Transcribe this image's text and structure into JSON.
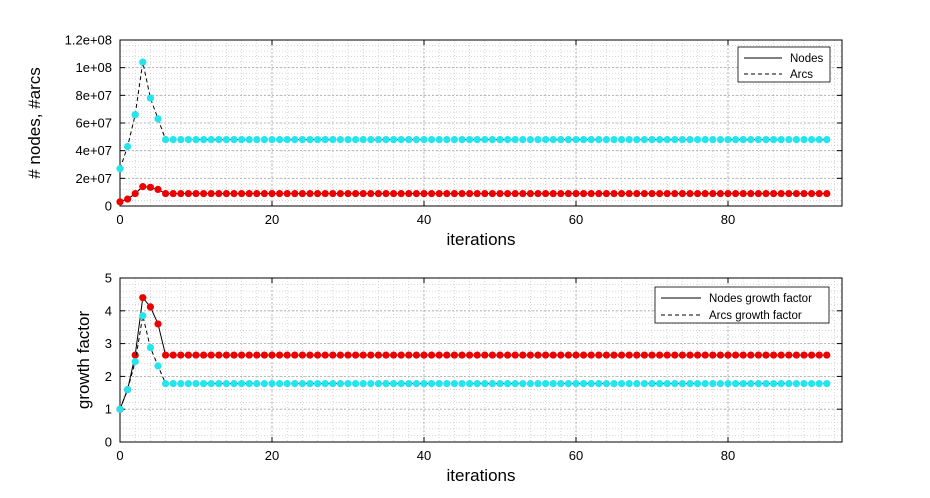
{
  "chart_data": [
    {
      "type": "line",
      "xlabel": "iterations",
      "ylabel": "# nodes, #arcs",
      "xlim": [
        0,
        95
      ],
      "ylim": [
        0,
        120000000
      ],
      "xticks": [
        0,
        20,
        40,
        60,
        80
      ],
      "xtick_labels": [
        "0",
        "20",
        "40",
        "60",
        "80"
      ],
      "yticks": [
        0,
        20000000,
        40000000,
        60000000,
        80000000,
        100000000,
        120000000
      ],
      "ytick_labels": [
        "0",
        "2e+07",
        "4e+07",
        "6e+07",
        "8e+07",
        "1e+08",
        "1.2e+08"
      ],
      "grid": true,
      "minor_grid": true,
      "legend_position": "top-right",
      "series": [
        {
          "name": "Nodes",
          "line_style": "solid",
          "marker_color": "#ee0000",
          "head": [
            3000000,
            5000000,
            9000000,
            14000000,
            13500000,
            12000000
          ],
          "steady_value": 9000000,
          "steady_from": 6,
          "steady_to": 93
        },
        {
          "name": "Arcs",
          "line_style": "dashed",
          "marker_color": "#22e5ee",
          "head": [
            27000000,
            43000000,
            66000000,
            104000000,
            78000000,
            63000000
          ],
          "steady_value": 48000000,
          "steady_from": 6,
          "steady_to": 93
        }
      ]
    },
    {
      "type": "line",
      "xlabel": "iterations",
      "ylabel": "growth factor",
      "xlim": [
        0,
        95
      ],
      "ylim": [
        0,
        5
      ],
      "xticks": [
        0,
        20,
        40,
        60,
        80
      ],
      "xtick_labels": [
        "0",
        "20",
        "40",
        "60",
        "80"
      ],
      "yticks": [
        0,
        1,
        2,
        3,
        4,
        5
      ],
      "ytick_labels": [
        "0",
        "1",
        "2",
        "3",
        "4",
        "5"
      ],
      "grid": true,
      "minor_grid": true,
      "legend_position": "top-right",
      "series": [
        {
          "name": "Nodes growth factor",
          "line_style": "solid",
          "marker_color": "#ee0000",
          "head": [
            1.0,
            1.6,
            2.65,
            4.4,
            4.12,
            3.6
          ],
          "steady_value": 2.65,
          "steady_from": 6,
          "steady_to": 93
        },
        {
          "name": "Arcs growth factor",
          "line_style": "dashed",
          "marker_color": "#22e5ee",
          "head": [
            1.0,
            1.6,
            2.45,
            3.85,
            2.88,
            2.32
          ],
          "steady_value": 1.78,
          "steady_from": 6,
          "steady_to": 93
        }
      ]
    }
  ]
}
